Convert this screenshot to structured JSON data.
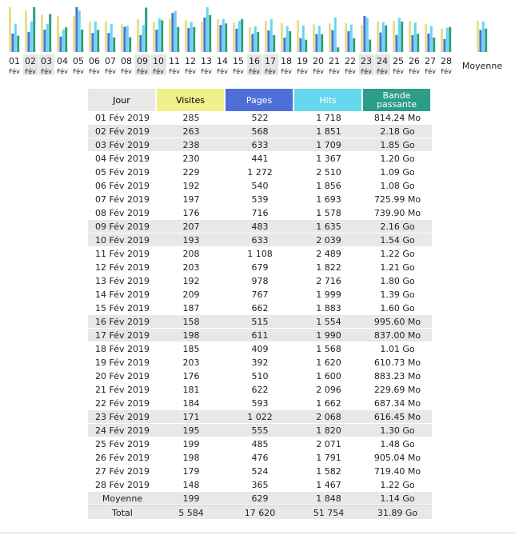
{
  "chart_data": {
    "type": "bar",
    "series": [
      {
        "name": "Visites",
        "color": "#e6e08a",
        "values": [
          285,
          263,
          238,
          230,
          229,
          192,
          197,
          176,
          207,
          193,
          208,
          203,
          192,
          209,
          187,
          158,
          198,
          185,
          203,
          176,
          181,
          184,
          171,
          195,
          199,
          198,
          179,
          148
        ]
      },
      {
        "name": "Pages",
        "color": "#4f6fd8",
        "values": [
          522,
          568,
          633,
          441,
          1272,
          540,
          539,
          716,
          483,
          633,
          1108,
          679,
          978,
          767,
          662,
          515,
          611,
          409,
          392,
          510,
          622,
          593,
          1022,
          555,
          485,
          476,
          524,
          365
        ]
      },
      {
        "name": "Hits",
        "color": "#66d8ee",
        "values": [
          1718,
          1851,
          1709,
          1367,
          2510,
          1856,
          1693,
          1578,
          1635,
          2039,
          2489,
          1822,
          2716,
          1999,
          1883,
          1554,
          1990,
          1568,
          1620,
          1600,
          2096,
          1662,
          2068,
          1820,
          2071,
          1791,
          1582,
          1467
        ]
      },
      {
        "name": "Bande passante",
        "color": "#2c9d88",
        "values_mo": [
          814.24,
          2232.32,
          1894.4,
          1228.8,
          1116.16,
          1105.92,
          725.99,
          739.9,
          2211.84,
          1576.96,
          1249.28,
          1239.04,
          1843.2,
          1423.36,
          1638.4,
          995.6,
          837.0,
          1034.24,
          610.73,
          883.23,
          229.69,
          687.34,
          616.45,
          1331.2,
          1515.52,
          905.04,
          719.4,
          1249.28
        ]
      }
    ],
    "x_days": [
      "01",
      "02",
      "03",
      "04",
      "05",
      "06",
      "07",
      "08",
      "09",
      "10",
      "11",
      "12",
      "13",
      "14",
      "15",
      "16",
      "17",
      "18",
      "19",
      "20",
      "21",
      "22",
      "23",
      "24",
      "25",
      "26",
      "27",
      "28"
    ],
    "x_month": "Fév",
    "highlighted_days": [
      "02",
      "03",
      "09",
      "10",
      "16",
      "17",
      "23",
      "24"
    ],
    "average": {
      "label": "Moyenne",
      "visits": 199,
      "pages": 629,
      "hits": 1848,
      "bandwidth_mo": 1167.36
    }
  },
  "table": {
    "headers": {
      "day": "Jour",
      "visits": "Visites",
      "pages": "Pages",
      "hits": "Hits",
      "bandwidth": "Bande passante"
    },
    "rows": [
      {
        "day": "01 Fév 2019",
        "visits": "285",
        "pages": "522",
        "hits": "1 718",
        "bw": "814.24 Mo",
        "style": "normal"
      },
      {
        "day": "02 Fév 2019",
        "visits": "263",
        "pages": "568",
        "hits": "1 851",
        "bw": "2.18 Go",
        "style": "alt"
      },
      {
        "day": "03 Fév 2019",
        "visits": "238",
        "pages": "633",
        "hits": "1 709",
        "bw": "1.85 Go",
        "style": "alt"
      },
      {
        "day": "04 Fév 2019",
        "visits": "230",
        "pages": "441",
        "hits": "1 367",
        "bw": "1.20 Go",
        "style": "normal"
      },
      {
        "day": "05 Fév 2019",
        "visits": "229",
        "pages": "1 272",
        "hits": "2 510",
        "bw": "1.09 Go",
        "style": "normal"
      },
      {
        "day": "06 Fév 2019",
        "visits": "192",
        "pages": "540",
        "hits": "1 856",
        "bw": "1.08 Go",
        "style": "normal"
      },
      {
        "day": "07 Fév 2019",
        "visits": "197",
        "pages": "539",
        "hits": "1 693",
        "bw": "725.99 Mo",
        "style": "normal"
      },
      {
        "day": "08 Fév 2019",
        "visits": "176",
        "pages": "716",
        "hits": "1 578",
        "bw": "739.90 Mo",
        "style": "normal"
      },
      {
        "day": "09 Fév 2019",
        "visits": "207",
        "pages": "483",
        "hits": "1 635",
        "bw": "2.16 Go",
        "style": "alt"
      },
      {
        "day": "10 Fév 2019",
        "visits": "193",
        "pages": "633",
        "hits": "2 039",
        "bw": "1.54 Go",
        "style": "alt"
      },
      {
        "day": "11 Fév 2019",
        "visits": "208",
        "pages": "1 108",
        "hits": "2 489",
        "bw": "1.22 Go",
        "style": "normal"
      },
      {
        "day": "12 Fév 2019",
        "visits": "203",
        "pages": "679",
        "hits": "1 822",
        "bw": "1.21 Go",
        "style": "normal"
      },
      {
        "day": "13 Fév 2019",
        "visits": "192",
        "pages": "978",
        "hits": "2 716",
        "bw": "1.80 Go",
        "style": "normal"
      },
      {
        "day": "14 Fév 2019",
        "visits": "209",
        "pages": "767",
        "hits": "1 999",
        "bw": "1.39 Go",
        "style": "normal"
      },
      {
        "day": "15 Fév 2019",
        "visits": "187",
        "pages": "662",
        "hits": "1 883",
        "bw": "1.60 Go",
        "style": "normal"
      },
      {
        "day": "16 Fév 2019",
        "visits": "158",
        "pages": "515",
        "hits": "1 554",
        "bw": "995.60 Mo",
        "style": "alt"
      },
      {
        "day": "17 Fév 2019",
        "visits": "198",
        "pages": "611",
        "hits": "1 990",
        "bw": "837.00 Mo",
        "style": "alt"
      },
      {
        "day": "18 Fév 2019",
        "visits": "185",
        "pages": "409",
        "hits": "1 568",
        "bw": "1.01 Go",
        "style": "normal"
      },
      {
        "day": "19 Fév 2019",
        "visits": "203",
        "pages": "392",
        "hits": "1 620",
        "bw": "610.73 Mo",
        "style": "normal"
      },
      {
        "day": "20 Fév 2019",
        "visits": "176",
        "pages": "510",
        "hits": "1 600",
        "bw": "883.23 Mo",
        "style": "normal"
      },
      {
        "day": "21 Fév 2019",
        "visits": "181",
        "pages": "622",
        "hits": "2 096",
        "bw": "229.69 Mo",
        "style": "normal"
      },
      {
        "day": "22 Fév 2019",
        "visits": "184",
        "pages": "593",
        "hits": "1 662",
        "bw": "687.34 Mo",
        "style": "normal"
      },
      {
        "day": "23 Fév 2019",
        "visits": "171",
        "pages": "1 022",
        "hits": "2 068",
        "bw": "616.45 Mo",
        "style": "alt"
      },
      {
        "day": "24 Fév 2019",
        "visits": "195",
        "pages": "555",
        "hits": "1 820",
        "bw": "1.30 Go",
        "style": "alt"
      },
      {
        "day": "25 Fév 2019",
        "visits": "199",
        "pages": "485",
        "hits": "2 071",
        "bw": "1.48 Go",
        "style": "normal"
      },
      {
        "day": "26 Fév 2019",
        "visits": "198",
        "pages": "476",
        "hits": "1 791",
        "bw": "905.04 Mo",
        "style": "normal"
      },
      {
        "day": "27 Fév 2019",
        "visits": "179",
        "pages": "524",
        "hits": "1 582",
        "bw": "719.40 Mo",
        "style": "normal"
      },
      {
        "day": "28 Fév 2019",
        "visits": "148",
        "pages": "365",
        "hits": "1 467",
        "bw": "1.22 Go",
        "style": "normal"
      }
    ],
    "average": {
      "day": "Moyenne",
      "visits": "199",
      "pages": "629",
      "hits": "1 848",
      "bw": "1.14 Go"
    },
    "total": {
      "day": "Total",
      "visits": "5 584",
      "pages": "17 620",
      "hits": "51 754",
      "bw": "31.89 Go"
    }
  }
}
